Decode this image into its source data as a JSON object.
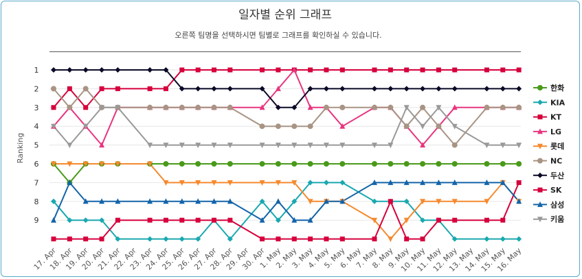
{
  "chart_data": {
    "type": "line",
    "title": "일자별 순위 그래프",
    "subtitle": "오른쪽 팀명을 선택하시면 팀별로 그래프를 확인하실 수 있습니다.",
    "ylabel": "Ranking",
    "yticks": [
      "1",
      "2",
      "3",
      "4",
      "5",
      "6",
      "7",
      "8",
      "9"
    ],
    "ylim": [
      1,
      10
    ],
    "y_reversed": true,
    "legend_position": "right",
    "categories": [
      "17. Apr",
      "18. Apr",
      "19. Apr",
      "20. Apr",
      "21. Apr",
      "22. Apr",
      "23. Apr",
      "24. Apr",
      "25. Apr",
      "26. Apr",
      "27. Apr",
      "28. Apr",
      "29. Apr",
      "30. Apr",
      "1. May",
      "2. May",
      "3. May",
      "4. May",
      "5. May",
      "6. May",
      "7. May",
      "8. May",
      "9. May",
      "10. May",
      "11. May",
      "12. May",
      "13. May",
      "14. May",
      "15. May",
      "16. May"
    ],
    "series": [
      {
        "name": "한화",
        "color": "#4a9a1a",
        "marker": "circle",
        "values": [
          6,
          7,
          6,
          6,
          6,
          null,
          6,
          6,
          6,
          6,
          6,
          6,
          null,
          6,
          6,
          6,
          6,
          6,
          6,
          null,
          6,
          6,
          6,
          6,
          6,
          6,
          null,
          6,
          6,
          6
        ]
      },
      {
        "name": "KIA",
        "color": "#1aa8b0",
        "marker": "diamond",
        "values": [
          8,
          9,
          9,
          9,
          10,
          null,
          10,
          10,
          10,
          10,
          9,
          10,
          null,
          8,
          9,
          8,
          7,
          7,
          7,
          null,
          8,
          8,
          8,
          9,
          9,
          10,
          null,
          10,
          10,
          10
        ]
      },
      {
        "name": "KT",
        "color": "#d6003c",
        "marker": "square",
        "values": [
          3,
          2,
          3,
          2,
          2,
          null,
          2,
          2,
          1,
          1,
          1,
          1,
          null,
          1,
          1,
          1,
          1,
          1,
          1,
          null,
          1,
          1,
          1,
          1,
          1,
          1,
          null,
          1,
          1,
          1
        ]
      },
      {
        "name": "LG",
        "color": "#e8357f",
        "marker": "triangle-up",
        "values": [
          4,
          3,
          4,
          5,
          3,
          null,
          3,
          3,
          3,
          3,
          3,
          3,
          null,
          3,
          2,
          1,
          3,
          3,
          4,
          null,
          3,
          3,
          4,
          5,
          4,
          3,
          null,
          3,
          3,
          3
        ]
      },
      {
        "name": "롯데",
        "color": "#f5892e",
        "marker": "triangle-down",
        "values": [
          6,
          6,
          6,
          6,
          6,
          null,
          6,
          7,
          7,
          7,
          7,
          7,
          null,
          7,
          7,
          7,
          8,
          8,
          8,
          null,
          9,
          10,
          9,
          8,
          8,
          8,
          null,
          8,
          7,
          8
        ]
      },
      {
        "name": "NC",
        "color": "#a89484",
        "marker": "circle",
        "values": [
          2,
          3,
          2,
          3,
          3,
          null,
          3,
          3,
          3,
          3,
          3,
          3,
          null,
          4,
          4,
          4,
          4,
          3,
          3,
          null,
          3,
          3,
          4,
          3,
          4,
          5,
          null,
          3,
          3,
          3
        ]
      },
      {
        "name": "두산",
        "color": "#0a0a28",
        "marker": "diamond",
        "values": [
          1,
          1,
          1,
          1,
          1,
          null,
          1,
          1,
          2,
          2,
          2,
          2,
          null,
          2,
          3,
          3,
          2,
          2,
          2,
          null,
          2,
          2,
          2,
          2,
          2,
          2,
          null,
          2,
          2,
          2
        ]
      },
      {
        "name": "SK",
        "color": "#d6003c",
        "marker": "square",
        "values": [
          10,
          10,
          10,
          10,
          9,
          null,
          9,
          9,
          9,
          9,
          9,
          9,
          null,
          10,
          10,
          10,
          10,
          10,
          10,
          null,
          10,
          8,
          10,
          10,
          9,
          9,
          null,
          9,
          9,
          7
        ]
      },
      {
        "name": "삼성",
        "color": "#1464a8",
        "marker": "triangle-up",
        "values": [
          9,
          7,
          8,
          8,
          8,
          null,
          8,
          8,
          8,
          8,
          8,
          8,
          null,
          9,
          8,
          9,
          9,
          8,
          8,
          null,
          7,
          7,
          7,
          7,
          7,
          7,
          null,
          7,
          7,
          8
        ]
      },
      {
        "name": "키움",
        "color": "#999999",
        "marker": "triangle-down",
        "values": [
          4,
          5,
          4,
          3,
          3,
          null,
          5,
          5,
          5,
          5,
          5,
          5,
          null,
          5,
          5,
          5,
          5,
          5,
          5,
          null,
          5,
          5,
          3,
          4,
          3,
          4,
          null,
          5,
          5,
          5
        ]
      }
    ]
  }
}
